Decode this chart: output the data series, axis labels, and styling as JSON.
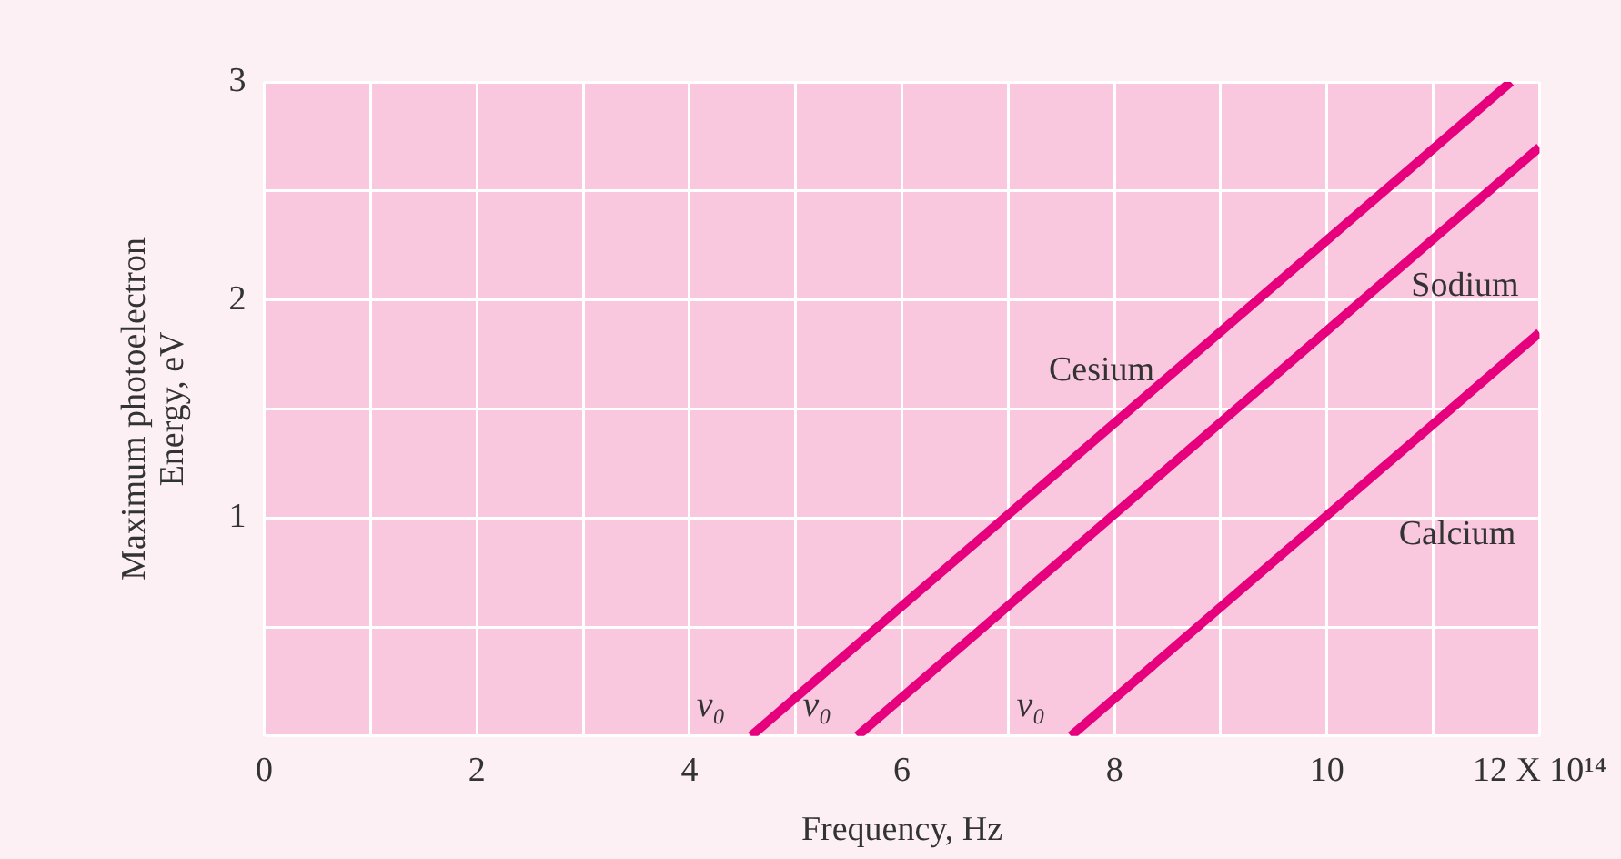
{
  "chart_data": {
    "type": "line",
    "xlabel": "Frequency, Hz",
    "ylabel": "Maximum photoelectron\nEnergy, eV",
    "series": [
      {
        "name": "Cesium",
        "color": "#e6007e",
        "x": [
          4.58,
          11.73
        ],
        "values": [
          0,
          3
        ]
      },
      {
        "name": "Sodium",
        "color": "#e6007e",
        "x": [
          5.58,
          12
        ],
        "values": [
          0,
          2.7
        ]
      },
      {
        "name": "Calcium",
        "color": "#e6007e",
        "x": [
          7.59,
          12
        ],
        "values": [
          0,
          1.85
        ]
      }
    ],
    "xlim": [
      0,
      12
    ],
    "xticks": [
      0,
      {
        "value": 1,
        "label": null
      },
      2,
      {
        "value": 3,
        "label": null
      },
      4,
      {
        "value": 5,
        "label": null
      },
      6,
      {
        "value": 7,
        "label": null
      },
      8,
      {
        "value": 9,
        "label": null
      },
      10,
      {
        "value": 11,
        "label": null
      },
      {
        "value": 12,
        "label": "12 X 10¹⁴"
      }
    ],
    "ylim": [
      0,
      3
    ],
    "yticks": [
      {
        "value": 0,
        "label": null
      },
      {
        "value": 0.5,
        "label": null
      },
      1,
      {
        "value": 1.5,
        "label": null
      },
      2,
      {
        "value": 2.5,
        "label": null
      },
      3
    ],
    "grid": true,
    "legend": false,
    "marker": "none",
    "line_style": "solid",
    "annotations": [
      {
        "text": "v₀",
        "x": 4.58,
        "y": 0
      },
      {
        "text": "v₀",
        "x": 5.58,
        "y": 0
      },
      {
        "text": "v₀",
        "x": 7.59,
        "y": 0
      }
    ]
  }
}
